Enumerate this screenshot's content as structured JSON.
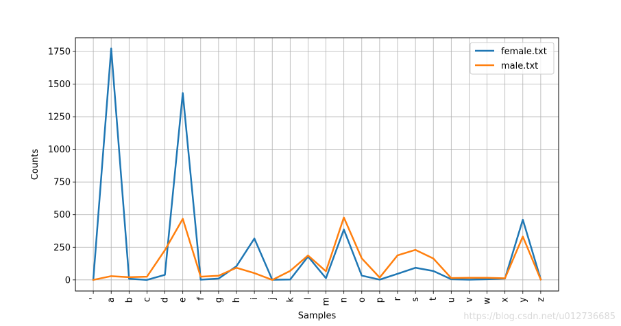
{
  "chart_data": {
    "type": "line",
    "title": "",
    "xlabel": "Samples",
    "ylabel": "Counts",
    "categories": [
      "'",
      "a",
      "b",
      "c",
      "d",
      "e",
      "f",
      "g",
      "h",
      "i",
      "j",
      "k",
      "l",
      "m",
      "n",
      "o",
      "p",
      "r",
      "s",
      "t",
      "u",
      "v",
      "w",
      "x",
      "y",
      "z"
    ],
    "ylim": [
      -85,
      1855
    ],
    "yticks": [
      0,
      250,
      500,
      750,
      1000,
      1250,
      1500,
      1750
    ],
    "grid": true,
    "legend_position": "top-right",
    "series": [
      {
        "name": "female.txt",
        "color": "#1f77b4",
        "values": [
          1,
          1773,
          9,
          0,
          39,
          1432,
          2,
          10,
          105,
          317,
          1,
          3,
          179,
          13,
          386,
          33,
          2,
          47,
          93,
          68,
          5,
          2,
          5,
          10,
          461,
          4
        ]
      },
      {
        "name": "male.txt",
        "color": "#ff7f0e",
        "values": [
          0,
          29,
          21,
          25,
          228,
          468,
          25,
          32,
          93,
          52,
          0,
          69,
          187,
          66,
          478,
          165,
          18,
          188,
          230,
          164,
          14,
          16,
          16,
          12,
          332,
          3
        ]
      }
    ]
  },
  "watermark": "https://blog.csdn.net/u012736685"
}
